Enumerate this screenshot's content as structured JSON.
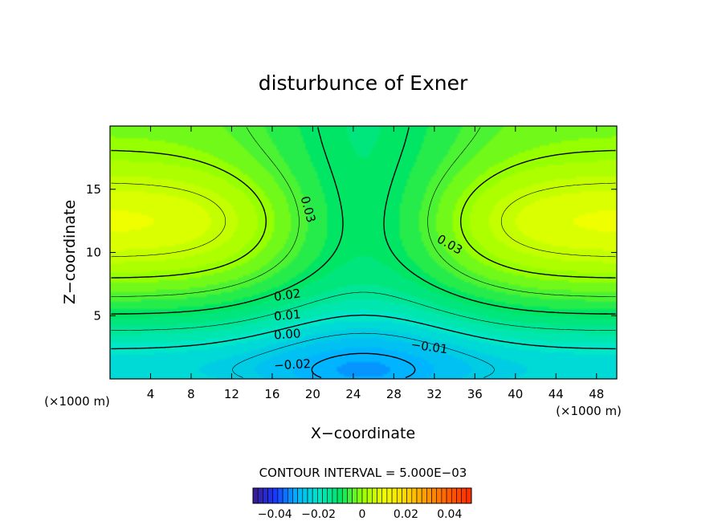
{
  "chart_data": {
    "type": "heatmap",
    "title": "disturbunce of Exner",
    "xlabel": "X−coordinate",
    "ylabel": "Z−coordinate",
    "x_unit": "(×1000 m)",
    "y_unit": "(×1000 m)",
    "xlim": [
      0,
      50
    ],
    "ylim": [
      0,
      20
    ],
    "x_ticks": [
      4,
      8,
      12,
      16,
      20,
      24,
      28,
      32,
      36,
      40,
      44,
      48
    ],
    "y_ticks": [
      5,
      10,
      15
    ],
    "contour_interval_text": "CONTOUR INTERVAL = 5.000E−03",
    "contour_interval": 0.005,
    "contour_labels": [
      {
        "text": "0.03",
        "x": 19.5,
        "z": 13.4,
        "rotate": 75
      },
      {
        "text": "0.03",
        "x": 33.5,
        "z": 10.6,
        "rotate": 30
      },
      {
        "text": "0.02",
        "x": 17.5,
        "z": 6.6,
        "rotate": -8
      },
      {
        "text": "0.01",
        "x": 17.5,
        "z": 5.0,
        "rotate": -5
      },
      {
        "text": "0.00",
        "x": 17.5,
        "z": 3.5,
        "rotate": -4
      },
      {
        "text": "−0.01",
        "x": 31.5,
        "z": 2.5,
        "rotate": 8
      },
      {
        "text": "−0.02",
        "x": 18.0,
        "z": 1.1,
        "rotate": -3
      }
    ],
    "colorbar": {
      "min": -0.05,
      "max": 0.05,
      "tick_values": [
        -0.04,
        -0.02,
        0,
        0.02,
        0.04
      ],
      "tick_labels": [
        "−0.04",
        "−0.02",
        "0",
        "0.02",
        "0.04"
      ]
    },
    "colormap": [
      "#3c1a8c",
      "#1a36ff",
      "#00b4ff",
      "#00e6c8",
      "#00e664",
      "#96ff00",
      "#f0ff00",
      "#ffd700",
      "#ff9600",
      "#ff5a00",
      "#ff2a00"
    ]
  }
}
